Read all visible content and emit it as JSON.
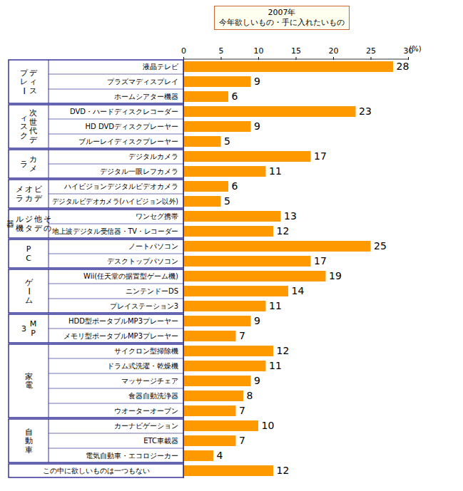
{
  "chart_data": {
    "type": "bar",
    "orientation": "horizontal",
    "title": "2007年",
    "subtitle": "今年欲しいもの・手に入れたいもの",
    "xlabel": "(%)",
    "categories": [
      "液晶テレビ",
      "プラズマディスプレイ",
      "ホームシアター機器",
      "DVD・ハードディスクレコーダー",
      "HD DVDディスクプレーヤー",
      "ブルーレイディスクプレーヤー",
      "デジタルカメラ",
      "デジタル一眼レフカメラ",
      "ハイビジョンデジタルビデオカメラ",
      "デジタルビデオカメラ(ハイビジョン以外)",
      "ワンセグ携帯",
      "地上波デジタル受信器・TV・レコーダー",
      "ノートパソコン",
      "デスクトップパソコン",
      "Wii(任天堂の据置型ゲーム機)",
      "ニンテンドーDS",
      "プレイステーション3",
      "HDD型ポータブルMP3プレーヤー",
      "メモリ型ポータブルMP3プレーヤー",
      "サイクロン型掃除機",
      "ドラム式洗濯・乾燥機",
      "マッサージチェア",
      "食器自動洗浄器",
      "ウオーターオーブン",
      "カーナビゲーション",
      "ETC車載器",
      "電気自動車・エコロジーカー",
      "この中に欲しいものは一つもない"
    ],
    "groups": [
      "ディスプレー",
      "ディスプレー",
      "ディスプレー",
      "次世代ディスク",
      "次世代ディスク",
      "次世代ディスク",
      "カメラ",
      "カメラ",
      "ビデオカメラ",
      "ビデオカメラ",
      "その他デジタル機器",
      "その他デジタル機器",
      "PC",
      "PC",
      "ゲーム",
      "ゲーム",
      "ゲーム",
      "MP3",
      "MP3",
      "家電",
      "家電",
      "家電",
      "家電",
      "家電",
      "自動車",
      "自動車",
      "自動車",
      null
    ],
    "values": [
      28,
      9,
      6,
      23,
      9,
      5,
      17,
      11,
      6,
      5,
      13,
      12,
      25,
      17,
      19,
      14,
      11,
      9,
      7,
      12,
      11,
      9,
      8,
      7,
      10,
      7,
      4,
      12
    ],
    "color": "#ff9900",
    "xlim": [
      0,
      30
    ],
    "xticks": [
      0,
      5,
      10,
      15,
      20,
      25,
      30
    ],
    "grid": false,
    "data_labels": true
  }
}
